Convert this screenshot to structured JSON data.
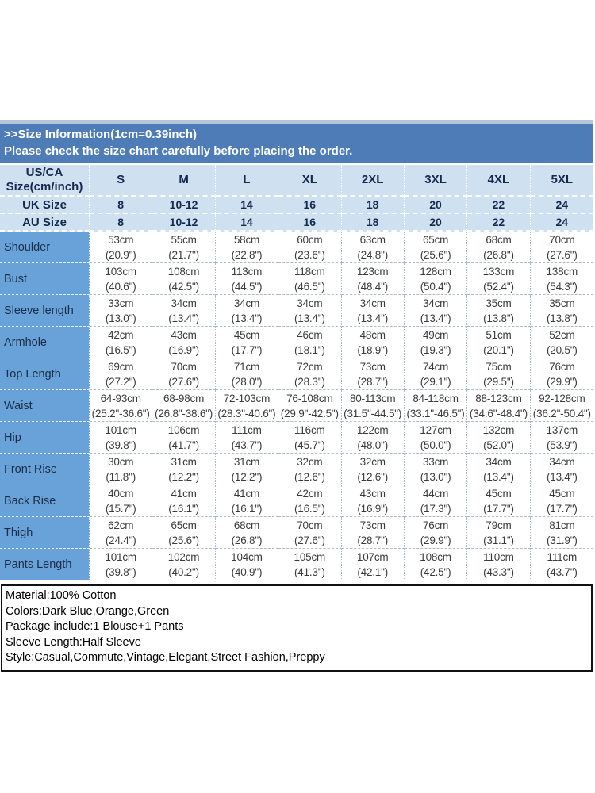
{
  "banner": {
    "title": ">>Size Information(1cm=0.39inch)",
    "subtitle": "Please check the size chart carefully before placing the order."
  },
  "colors": {
    "banner_blue": "#4d7cb6",
    "header_light_blue": "#cfe0f1",
    "label_column_blue": "#69a2d9",
    "header_text_navy": "#14294e",
    "cell_border_gray": "#a9bccd"
  },
  "table": {
    "corner_header": [
      "US/CA",
      "Size(cm/inch)"
    ],
    "size_headers": [
      "S",
      "M",
      "L",
      "XL",
      "2XL",
      "3XL",
      "4XL",
      "5XL"
    ],
    "uk_row": {
      "label": "UK Size",
      "values": [
        "8",
        "10-12",
        "14",
        "16",
        "18",
        "20",
        "22",
        "24"
      ]
    },
    "au_row": {
      "label": "AU Size",
      "values": [
        "8",
        "10-12",
        "14",
        "16",
        "18",
        "20",
        "22",
        "24"
      ]
    },
    "measurement_rows": [
      {
        "label": "Shoulder",
        "cells": [
          [
            "53cm",
            "(20.9\")"
          ],
          [
            "55cm",
            "(21.7\")"
          ],
          [
            "58cm",
            "(22.8\")"
          ],
          [
            "60cm",
            "(23.6\")"
          ],
          [
            "63cm",
            "(24.8\")"
          ],
          [
            "65cm",
            "(25.6\")"
          ],
          [
            "68cm",
            "(26.8\")"
          ],
          [
            "70cm",
            "(27.6\")"
          ]
        ]
      },
      {
        "label": "Bust",
        "cells": [
          [
            "103cm",
            "(40.6\")"
          ],
          [
            "108cm",
            "(42.5\")"
          ],
          [
            "113cm",
            "(44.5\")"
          ],
          [
            "118cm",
            "(46.5\")"
          ],
          [
            "123cm",
            "(48.4\")"
          ],
          [
            "128cm",
            "(50.4\")"
          ],
          [
            "133cm",
            "(52.4\")"
          ],
          [
            "138cm",
            "(54.3\")"
          ]
        ]
      },
      {
        "label": "Sleeve length",
        "cells": [
          [
            "33cm",
            "(13.0\")"
          ],
          [
            "34cm",
            "(13.4\")"
          ],
          [
            "34cm",
            "(13.4\")"
          ],
          [
            "34cm",
            "(13.4\")"
          ],
          [
            "34cm",
            "(13.4\")"
          ],
          [
            "34cm",
            "(13.4\")"
          ],
          [
            "35cm",
            "(13.8\")"
          ],
          [
            "35cm",
            "(13.8\")"
          ]
        ]
      },
      {
        "label": "Armhole",
        "cells": [
          [
            "42cm",
            "(16.5\")"
          ],
          [
            "43cm",
            "(16.9\")"
          ],
          [
            "45cm",
            "(17.7\")"
          ],
          [
            "46cm",
            "(18.1\")"
          ],
          [
            "48cm",
            "(18.9\")"
          ],
          [
            "49cm",
            "(19.3\")"
          ],
          [
            "51cm",
            "(20.1\")"
          ],
          [
            "52cm",
            "(20.5\")"
          ]
        ]
      },
      {
        "label": "Top Length",
        "cells": [
          [
            "69cm",
            "(27.2\")"
          ],
          [
            "70cm",
            "(27.6\")"
          ],
          [
            "71cm",
            "(28.0\")"
          ],
          [
            "72cm",
            "(28.3\")"
          ],
          [
            "73cm",
            "(28.7\")"
          ],
          [
            "74cm",
            "(29.1\")"
          ],
          [
            "75cm",
            "(29.5\")"
          ],
          [
            "76cm",
            "(29.9\")"
          ]
        ]
      },
      {
        "label": "Waist",
        "cells": [
          [
            "64-93cm",
            "(25.2\"-36.6\")"
          ],
          [
            "68-98cm",
            "(26.8\"-38.6\")"
          ],
          [
            "72-103cm",
            "(28.3\"-40.6\")"
          ],
          [
            "76-108cm",
            "(29.9\"-42.5\")"
          ],
          [
            "80-113cm",
            "(31.5\"-44.5\")"
          ],
          [
            "84-118cm",
            "(33.1\"-46.5\")"
          ],
          [
            "88-123cm",
            "(34.6\"-48.4\")"
          ],
          [
            "92-128cm",
            "(36.2\"-50.4\")"
          ]
        ]
      },
      {
        "label": "Hip",
        "cells": [
          [
            "101cm",
            "(39.8\")"
          ],
          [
            "106cm",
            "(41.7\")"
          ],
          [
            "111cm",
            "(43.7\")"
          ],
          [
            "116cm",
            "(45.7\")"
          ],
          [
            "122cm",
            "(48.0\")"
          ],
          [
            "127cm",
            "(50.0\")"
          ],
          [
            "132cm",
            "(52.0\")"
          ],
          [
            "137cm",
            "(53.9\")"
          ]
        ]
      },
      {
        "label": "Front Rise",
        "cells": [
          [
            "30cm",
            "(11.8\")"
          ],
          [
            "31cm",
            "(12.2\")"
          ],
          [
            "31cm",
            "(12.2\")"
          ],
          [
            "32cm",
            "(12.6\")"
          ],
          [
            "32cm",
            "(12.6\")"
          ],
          [
            "33cm",
            "(13.0\")"
          ],
          [
            "34cm",
            "(13.4\")"
          ],
          [
            "34cm",
            "(13.4\")"
          ]
        ]
      },
      {
        "label": "Back Rise",
        "cells": [
          [
            "40cm",
            "(15.7\")"
          ],
          [
            "41cm",
            "(16.1\")"
          ],
          [
            "41cm",
            "(16.1\")"
          ],
          [
            "42cm",
            "(16.5\")"
          ],
          [
            "43cm",
            "(16.9\")"
          ],
          [
            "44cm",
            "(17.3\")"
          ],
          [
            "45cm",
            "(17.7\")"
          ],
          [
            "45cm",
            "(17.7\")"
          ]
        ]
      },
      {
        "label": "Thigh",
        "cells": [
          [
            "62cm",
            "(24.4\")"
          ],
          [
            "65cm",
            "(25.6\")"
          ],
          [
            "68cm",
            "(26.8\")"
          ],
          [
            "70cm",
            "(27.6\")"
          ],
          [
            "73cm",
            "(28.7\")"
          ],
          [
            "76cm",
            "(29.9\")"
          ],
          [
            "79cm",
            "(31.1\")"
          ],
          [
            "81cm",
            "(31.9\")"
          ]
        ]
      },
      {
        "label": "Pants Length",
        "cells": [
          [
            "101cm",
            "(39.8\")"
          ],
          [
            "102cm",
            "(40.2\")"
          ],
          [
            "104cm",
            "(40.9\")"
          ],
          [
            "105cm",
            "(41.3\")"
          ],
          [
            "107cm",
            "(42.1\")"
          ],
          [
            "108cm",
            "(42.5\")"
          ],
          [
            "110cm",
            "(43.3\")"
          ],
          [
            "111cm",
            "(43.7\")"
          ]
        ]
      }
    ]
  },
  "details": {
    "lines": [
      "Material:100% Cotton",
      "Colors:Dark Blue,Orange,Green",
      "Package include:1 Blouse+1 Pants",
      "Sleeve Length:Half Sleeve",
      "Style:Casual,Commute,Vintage,Elegant,Street Fashion,Preppy"
    ]
  }
}
